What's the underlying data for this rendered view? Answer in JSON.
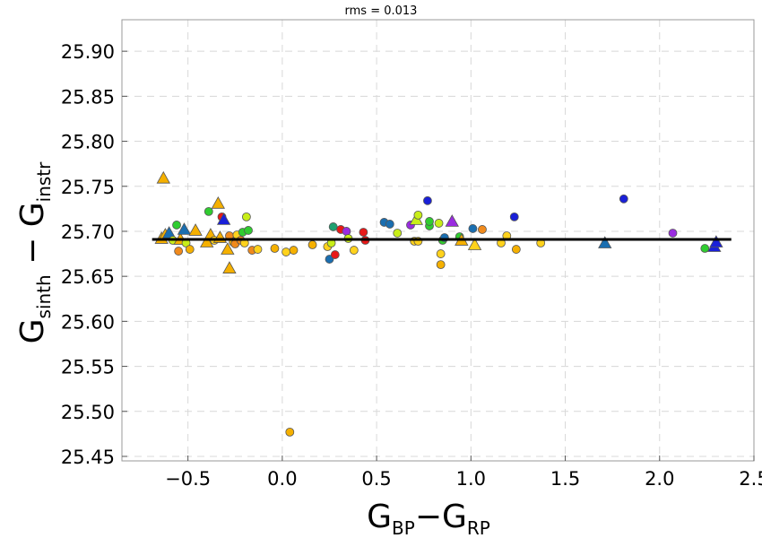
{
  "chart_data": {
    "type": "scatter",
    "title": "rms = 0.013",
    "xlabel": {
      "main": "G",
      "sub1": "BP",
      "dash": "−G",
      "sub2": "RP"
    },
    "ylabel": {
      "main": "G",
      "sub1": "sinth",
      "dash": " − G",
      "sub2": "instr"
    },
    "xlim": [
      -0.85,
      2.5
    ],
    "ylim": [
      25.445,
      25.935
    ],
    "xticks": [
      -0.5,
      0.0,
      0.5,
      1.0,
      1.5,
      2.0,
      2.5
    ],
    "xtick_labels": [
      "−0.5",
      "0.0",
      "0.5",
      "1.0",
      "1.5",
      "2.0",
      "2.5"
    ],
    "yticks": [
      25.45,
      25.5,
      25.55,
      25.6,
      25.65,
      25.7,
      25.75,
      25.8,
      25.85,
      25.9
    ],
    "ytick_labels": [
      "25.45",
      "25.50",
      "25.55",
      "25.60",
      "25.65",
      "25.70",
      "25.75",
      "25.80",
      "25.85",
      "25.90"
    ],
    "grid": true,
    "fit_line": {
      "x": [
        -0.69,
        2.38
      ],
      "y": 25.691
    },
    "colors": {
      "yellow": "#ffd21c",
      "gold": "#f5b000",
      "orange": "#f08a1c",
      "red": "#e81818",
      "lime": "#c8ee18",
      "green": "#30cc30",
      "sea": "#20a070",
      "teal": "#1a6eb0",
      "blue": "#1a20d8",
      "purple": "#9a2ce0"
    },
    "points": [
      {
        "x": -0.63,
        "y": 25.759,
        "m": "triangle",
        "c": "gold"
      },
      {
        "x": -0.64,
        "y": 25.692,
        "m": "triangle",
        "c": "gold"
      },
      {
        "x": -0.62,
        "y": 25.696,
        "m": "triangle",
        "c": "gold"
      },
      {
        "x": -0.6,
        "y": 25.698,
        "m": "triangle",
        "c": "teal"
      },
      {
        "x": -0.58,
        "y": 25.69,
        "m": "circle",
        "c": "lime"
      },
      {
        "x": -0.56,
        "y": 25.707,
        "m": "circle",
        "c": "green"
      },
      {
        "x": -0.55,
        "y": 25.678,
        "m": "circle",
        "c": "orange"
      },
      {
        "x": -0.54,
        "y": 25.691,
        "m": "triangle",
        "c": "gold"
      },
      {
        "x": -0.52,
        "y": 25.702,
        "m": "triangle",
        "c": "teal"
      },
      {
        "x": -0.51,
        "y": 25.687,
        "m": "circle",
        "c": "lime"
      },
      {
        "x": -0.49,
        "y": 25.68,
        "m": "circle",
        "c": "gold"
      },
      {
        "x": -0.46,
        "y": 25.701,
        "m": "triangle",
        "c": "gold"
      },
      {
        "x": -0.4,
        "y": 25.688,
        "m": "triangle",
        "c": "gold"
      },
      {
        "x": -0.39,
        "y": 25.722,
        "m": "circle",
        "c": "green"
      },
      {
        "x": -0.38,
        "y": 25.696,
        "m": "triangle",
        "c": "gold"
      },
      {
        "x": -0.36,
        "y": 25.69,
        "m": "circle",
        "c": "yellow"
      },
      {
        "x": -0.34,
        "y": 25.731,
        "m": "triangle",
        "c": "gold"
      },
      {
        "x": -0.33,
        "y": 25.693,
        "m": "triangle",
        "c": "gold"
      },
      {
        "x": -0.32,
        "y": 25.716,
        "m": "circle",
        "c": "red"
      },
      {
        "x": -0.31,
        "y": 25.713,
        "m": "triangle",
        "c": "blue"
      },
      {
        "x": -0.29,
        "y": 25.68,
        "m": "triangle",
        "c": "gold"
      },
      {
        "x": -0.28,
        "y": 25.659,
        "m": "triangle",
        "c": "gold"
      },
      {
        "x": -0.28,
        "y": 25.695,
        "m": "circle",
        "c": "orange"
      },
      {
        "x": -0.26,
        "y": 25.688,
        "m": "circle",
        "c": "gold"
      },
      {
        "x": -0.25,
        "y": 25.686,
        "m": "circle",
        "c": "orange"
      },
      {
        "x": -0.24,
        "y": 25.696,
        "m": "circle",
        "c": "yellow"
      },
      {
        "x": -0.22,
        "y": 25.69,
        "m": "circle",
        "c": "orange"
      },
      {
        "x": -0.21,
        "y": 25.699,
        "m": "circle",
        "c": "green"
      },
      {
        "x": -0.2,
        "y": 25.687,
        "m": "circle",
        "c": "yellow"
      },
      {
        "x": -0.19,
        "y": 25.716,
        "m": "circle",
        "c": "lime"
      },
      {
        "x": -0.18,
        "y": 25.701,
        "m": "circle",
        "c": "green"
      },
      {
        "x": -0.16,
        "y": 25.679,
        "m": "circle",
        "c": "orange"
      },
      {
        "x": -0.13,
        "y": 25.68,
        "m": "circle",
        "c": "yellow"
      },
      {
        "x": -0.04,
        "y": 25.681,
        "m": "circle",
        "c": "gold"
      },
      {
        "x": 0.02,
        "y": 25.677,
        "m": "circle",
        "c": "yellow"
      },
      {
        "x": 0.04,
        "y": 25.477,
        "m": "circle",
        "c": "gold"
      },
      {
        "x": 0.06,
        "y": 25.679,
        "m": "circle",
        "c": "gold"
      },
      {
        "x": 0.16,
        "y": 25.685,
        "m": "circle",
        "c": "gold"
      },
      {
        "x": 0.24,
        "y": 25.683,
        "m": "circle",
        "c": "yellow"
      },
      {
        "x": 0.25,
        "y": 25.669,
        "m": "circle",
        "c": "teal"
      },
      {
        "x": 0.26,
        "y": 25.687,
        "m": "circle",
        "c": "lime"
      },
      {
        "x": 0.27,
        "y": 25.705,
        "m": "circle",
        "c": "sea"
      },
      {
        "x": 0.28,
        "y": 25.674,
        "m": "circle",
        "c": "red"
      },
      {
        "x": 0.31,
        "y": 25.702,
        "m": "circle",
        "c": "red"
      },
      {
        "x": 0.34,
        "y": 25.7,
        "m": "circle",
        "c": "purple"
      },
      {
        "x": 0.35,
        "y": 25.692,
        "m": "circle",
        "c": "lime"
      },
      {
        "x": 0.38,
        "y": 25.679,
        "m": "circle",
        "c": "yellow"
      },
      {
        "x": 0.43,
        "y": 25.699,
        "m": "circle",
        "c": "red"
      },
      {
        "x": 0.44,
        "y": 25.69,
        "m": "circle",
        "c": "red"
      },
      {
        "x": 0.54,
        "y": 25.71,
        "m": "circle",
        "c": "teal"
      },
      {
        "x": 0.57,
        "y": 25.708,
        "m": "circle",
        "c": "teal"
      },
      {
        "x": 0.61,
        "y": 25.698,
        "m": "circle",
        "c": "lime"
      },
      {
        "x": 0.68,
        "y": 25.707,
        "m": "circle",
        "c": "purple"
      },
      {
        "x": 0.7,
        "y": 25.689,
        "m": "circle",
        "c": "yellow"
      },
      {
        "x": 0.71,
        "y": 25.713,
        "m": "triangle",
        "c": "lime"
      },
      {
        "x": 0.72,
        "y": 25.718,
        "m": "circle",
        "c": "lime"
      },
      {
        "x": 0.72,
        "y": 25.689,
        "m": "circle",
        "c": "yellow"
      },
      {
        "x": 0.77,
        "y": 25.734,
        "m": "circle",
        "c": "blue"
      },
      {
        "x": 0.78,
        "y": 25.706,
        "m": "circle",
        "c": "green"
      },
      {
        "x": 0.78,
        "y": 25.711,
        "m": "circle",
        "c": "green"
      },
      {
        "x": 0.83,
        "y": 25.709,
        "m": "circle",
        "c": "lime"
      },
      {
        "x": 0.84,
        "y": 25.663,
        "m": "circle",
        "c": "gold"
      },
      {
        "x": 0.84,
        "y": 25.675,
        "m": "circle",
        "c": "yellow"
      },
      {
        "x": 0.85,
        "y": 25.69,
        "m": "circle",
        "c": "green"
      },
      {
        "x": 0.86,
        "y": 25.693,
        "m": "circle",
        "c": "teal"
      },
      {
        "x": 0.9,
        "y": 25.711,
        "m": "triangle",
        "c": "purple"
      },
      {
        "x": 0.94,
        "y": 25.694,
        "m": "circle",
        "c": "green"
      },
      {
        "x": 0.95,
        "y": 25.69,
        "m": "triangle",
        "c": "gold"
      },
      {
        "x": 1.01,
        "y": 25.703,
        "m": "circle",
        "c": "teal"
      },
      {
        "x": 1.02,
        "y": 25.685,
        "m": "triangle",
        "c": "yellow"
      },
      {
        "x": 1.06,
        "y": 25.702,
        "m": "circle",
        "c": "orange"
      },
      {
        "x": 1.16,
        "y": 25.687,
        "m": "circle",
        "c": "yellow"
      },
      {
        "x": 1.19,
        "y": 25.695,
        "m": "circle",
        "c": "yellow"
      },
      {
        "x": 1.23,
        "y": 25.716,
        "m": "circle",
        "c": "blue"
      },
      {
        "x": 1.24,
        "y": 25.68,
        "m": "circle",
        "c": "gold"
      },
      {
        "x": 1.37,
        "y": 25.687,
        "m": "circle",
        "c": "yellow"
      },
      {
        "x": 1.71,
        "y": 25.687,
        "m": "triangle",
        "c": "teal"
      },
      {
        "x": 1.81,
        "y": 25.736,
        "m": "circle",
        "c": "blue"
      },
      {
        "x": 2.07,
        "y": 25.698,
        "m": "circle",
        "c": "purple"
      },
      {
        "x": 2.24,
        "y": 25.681,
        "m": "circle",
        "c": "green"
      },
      {
        "x": 2.29,
        "y": 25.683,
        "m": "triangle",
        "c": "blue"
      },
      {
        "x": 2.3,
        "y": 25.688,
        "m": "triangle",
        "c": "blue"
      }
    ]
  }
}
